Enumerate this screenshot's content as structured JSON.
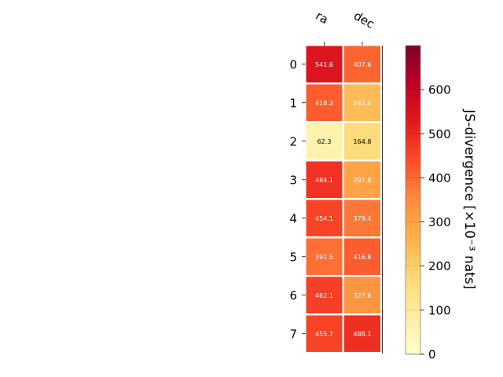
{
  "chart_data": {
    "type": "heatmap",
    "columns": [
      "ra",
      "dec"
    ],
    "rows": [
      "0",
      "1",
      "2",
      "3",
      "4",
      "5",
      "6",
      "7"
    ],
    "values": [
      [
        541.6,
        407.6
      ],
      [
        418.3,
        242.4
      ],
      [
        62.3,
        164.8
      ],
      [
        484.1,
        297.8
      ],
      [
        454.1,
        379.4
      ],
      [
        391.5,
        416.8
      ],
      [
        462.1,
        327.6
      ],
      [
        455.7,
        488.1
      ]
    ],
    "value_labels": [
      [
        "541.6",
        "407.6"
      ],
      [
        "418.3",
        "242.4"
      ],
      [
        "62.3",
        "164.8"
      ],
      [
        "484.1",
        "297.8"
      ],
      [
        "454.1",
        "379.4"
      ],
      [
        "391.5",
        "416.8"
      ],
      [
        "462.1",
        "327.6"
      ],
      [
        "455.7",
        "488.1"
      ]
    ],
    "colorbar": {
      "label": "JS-divergence [×10⁻³ nats]",
      "range": [
        0,
        700
      ],
      "ticks": [
        0,
        100,
        200,
        300,
        400,
        500,
        600
      ],
      "tick_labels": [
        "0",
        "100",
        "200",
        "300",
        "400",
        "500",
        "600"
      ],
      "colormap": "YlOrRd"
    },
    "colors": {
      "colormap_stops": [
        "#ffffcc",
        "#ffeda0",
        "#fed976",
        "#feb24c",
        "#fd8d3c",
        "#fc4e2a",
        "#e31a1c",
        "#bd0026",
        "#800026"
      ],
      "light_text": "#ffffff",
      "dark_text": "#000000"
    }
  }
}
